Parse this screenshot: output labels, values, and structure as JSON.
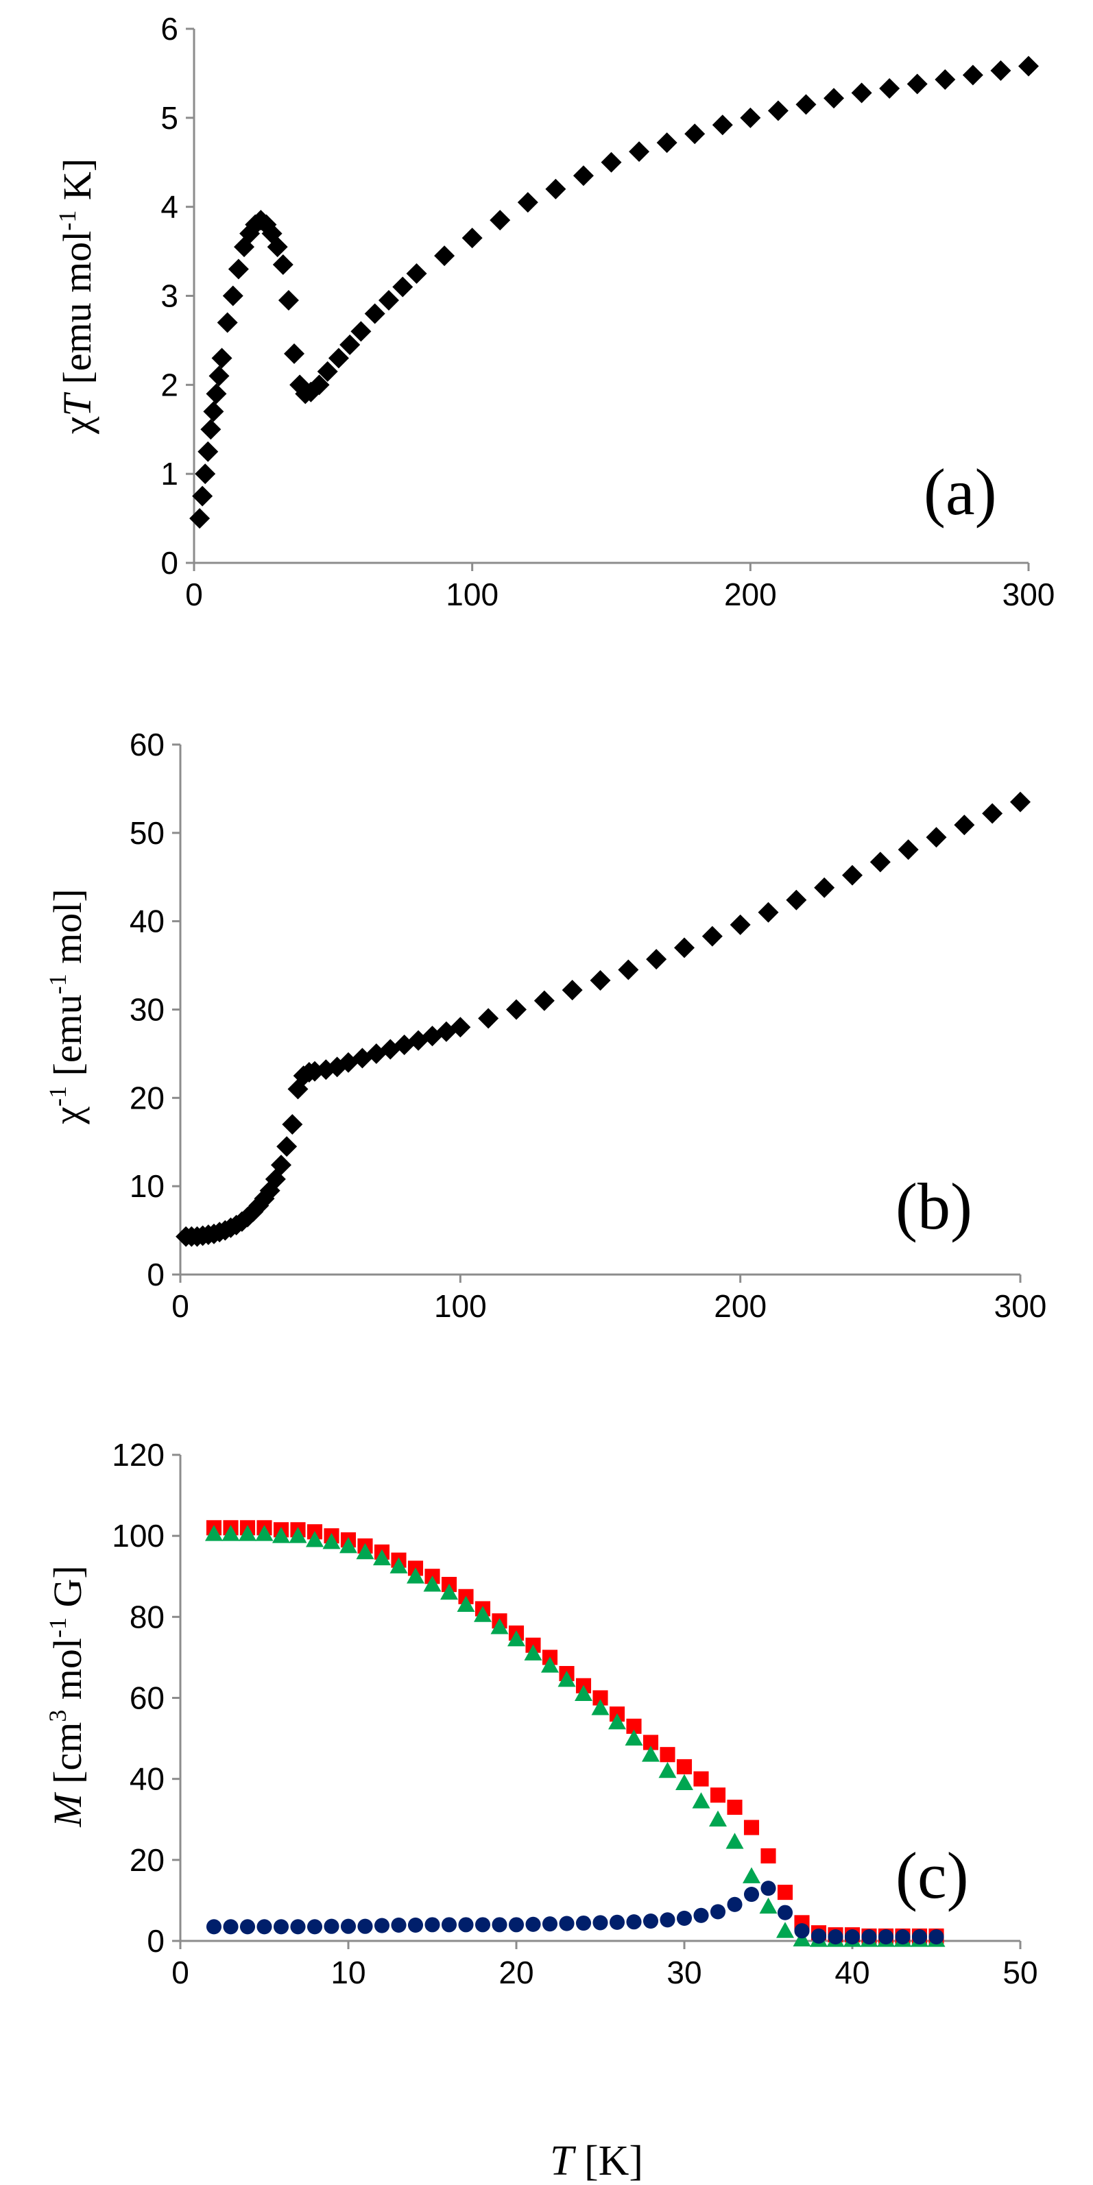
{
  "chart_data": [
    {
      "type": "scatter",
      "panel_label": "(a)",
      "ylabel": {
        "sym": "χT",
        "prefix": "χ",
        "italic": "T",
        "open": " [emu mol",
        "sup": "-1",
        "close": " K]"
      },
      "xlim": [
        0,
        300
      ],
      "ylim": [
        0,
        6
      ],
      "xticks": [
        "0",
        "100",
        "200",
        "300"
      ],
      "yticks": [
        "0",
        "1",
        "2",
        "3",
        "4",
        "5",
        "6"
      ],
      "series": [
        {
          "name": "χT",
          "marker": "diamond",
          "color": "#000000",
          "x": [
            2,
            3,
            4,
            5,
            6,
            7,
            8,
            9,
            10,
            12,
            14,
            16,
            18,
            20,
            22,
            24,
            26,
            28,
            30,
            32,
            34,
            36,
            38,
            40,
            42,
            45,
            48,
            52,
            56,
            60,
            65,
            70,
            75,
            80,
            90,
            100,
            110,
            120,
            130,
            140,
            150,
            160,
            170,
            180,
            190,
            200,
            210,
            220,
            230,
            240,
            250,
            260,
            270,
            280,
            290,
            300
          ],
          "y": [
            0.5,
            0.75,
            1.0,
            1.25,
            1.5,
            1.7,
            1.9,
            2.1,
            2.3,
            2.7,
            3.0,
            3.3,
            3.55,
            3.7,
            3.8,
            3.85,
            3.8,
            3.7,
            3.55,
            3.35,
            2.95,
            2.35,
            2.0,
            1.9,
            1.92,
            2.0,
            2.15,
            2.3,
            2.45,
            2.6,
            2.8,
            2.95,
            3.1,
            3.25,
            3.45,
            3.65,
            3.85,
            4.05,
            4.2,
            4.35,
            4.5,
            4.62,
            4.72,
            4.82,
            4.92,
            5.0,
            5.08,
            5.15,
            5.22,
            5.28,
            5.33,
            5.38,
            5.43,
            5.48,
            5.53,
            5.58
          ]
        }
      ]
    },
    {
      "type": "scatter",
      "panel_label": "(b)",
      "ylabel": {
        "sym": "χ-1",
        "prefix": "χ",
        "presup": "-1",
        "open": " [emu",
        "sup": "-1",
        "close": " mol]"
      },
      "xlim": [
        0,
        300
      ],
      "ylim": [
        0,
        60
      ],
      "xticks": [
        "0",
        "100",
        "200",
        "300"
      ],
      "yticks": [
        "0",
        "10",
        "20",
        "30",
        "40",
        "50",
        "60"
      ],
      "series": [
        {
          "name": "1/χ",
          "marker": "diamond",
          "color": "#000000",
          "x": [
            2,
            4,
            6,
            8,
            10,
            12,
            14,
            16,
            18,
            20,
            22,
            24,
            26,
            28,
            30,
            32,
            34,
            36,
            38,
            40,
            42,
            44,
            46,
            48,
            52,
            56,
            60,
            65,
            70,
            75,
            80,
            85,
            90,
            95,
            100,
            110,
            120,
            130,
            140,
            150,
            160,
            170,
            180,
            190,
            200,
            210,
            220,
            230,
            240,
            250,
            260,
            270,
            280,
            290,
            300
          ],
          "y": [
            4.3,
            4.3,
            4.3,
            4.4,
            4.5,
            4.6,
            4.8,
            5.0,
            5.3,
            5.6,
            6.0,
            6.5,
            7.1,
            7.8,
            8.6,
            9.5,
            10.8,
            12.4,
            14.5,
            17.0,
            21.0,
            22.5,
            22.9,
            23.0,
            23.2,
            23.5,
            24.0,
            24.5,
            25.0,
            25.5,
            26.0,
            26.5,
            27.0,
            27.5,
            28.0,
            29.0,
            30.0,
            31.0,
            32.2,
            33.3,
            34.5,
            35.7,
            37.0,
            38.3,
            39.6,
            41.0,
            42.4,
            43.8,
            45.2,
            46.7,
            48.1,
            49.5,
            50.9,
            52.2,
            53.5
          ]
        }
      ]
    },
    {
      "type": "scatter",
      "panel_label": "(c)",
      "ylabel": {
        "italic": "M",
        "open": " [cm",
        "sup": "3",
        "mid": " mol",
        "sup2": "-1",
        "close": " G]"
      },
      "xlabel": {
        "italic": "T",
        "rest": " [K]"
      },
      "xlim": [
        0,
        50
      ],
      "ylim": [
        0,
        120
      ],
      "xticks": [
        "0",
        "10",
        "20",
        "30",
        "40",
        "50"
      ],
      "yticks": [
        "0",
        "20",
        "40",
        "60",
        "80",
        "100",
        "120"
      ],
      "series": [
        {
          "name": "series-red-squares",
          "marker": "square",
          "color": "#ff0000",
          "x": [
            2,
            3,
            4,
            5,
            6,
            7,
            8,
            9,
            10,
            11,
            12,
            13,
            14,
            15,
            16,
            17,
            18,
            19,
            20,
            21,
            22,
            23,
            24,
            25,
            26,
            27,
            28,
            29,
            30,
            31,
            32,
            33,
            34,
            35,
            36,
            37,
            38,
            39,
            40,
            41,
            42,
            43,
            44,
            45
          ],
          "y": [
            102,
            102,
            102,
            102,
            101.5,
            101.5,
            101,
            100,
            99,
            97.5,
            96,
            94,
            92,
            90,
            88,
            85,
            82,
            79,
            76,
            73,
            70,
            66,
            63,
            60,
            56,
            53,
            49,
            46,
            43,
            40,
            36,
            33,
            28,
            21,
            12,
            4.5,
            2,
            1.5,
            1.5,
            1.2,
            1.2,
            1.2,
            1.2,
            1.2
          ]
        },
        {
          "name": "series-green-triangles",
          "marker": "triangle",
          "color": "#00a651",
          "x": [
            2,
            3,
            4,
            5,
            6,
            7,
            8,
            9,
            10,
            11,
            12,
            13,
            14,
            15,
            16,
            17,
            18,
            19,
            20,
            21,
            22,
            23,
            24,
            25,
            26,
            27,
            28,
            29,
            30,
            31,
            32,
            33,
            34,
            35,
            36,
            37,
            38,
            39,
            40,
            41,
            42,
            43,
            44,
            45
          ],
          "y": [
            100.5,
            100.5,
            100.5,
            100.5,
            100,
            100,
            99,
            98.5,
            97.5,
            96,
            94.5,
            92.5,
            90,
            88,
            86,
            83,
            80.5,
            77.5,
            74.5,
            71,
            68,
            64.5,
            61,
            57.5,
            54,
            50,
            46,
            42,
            39,
            34.5,
            30,
            24.5,
            16,
            8.5,
            2.5,
            0.4,
            0.3,
            0.3,
            0.3,
            0.3,
            0.3,
            0.3,
            0.3,
            0.3
          ]
        },
        {
          "name": "series-navy-circles",
          "marker": "circle",
          "color": "#001f6b",
          "x": [
            2,
            3,
            4,
            5,
            6,
            7,
            8,
            9,
            10,
            11,
            12,
            13,
            14,
            15,
            16,
            17,
            18,
            19,
            20,
            21,
            22,
            23,
            24,
            25,
            26,
            27,
            28,
            29,
            30,
            31,
            32,
            33,
            34,
            35,
            36,
            37,
            38,
            39,
            40,
            41,
            42,
            43,
            44,
            45
          ],
          "y": [
            3.5,
            3.5,
            3.5,
            3.5,
            3.5,
            3.5,
            3.5,
            3.6,
            3.6,
            3.6,
            3.8,
            3.9,
            3.9,
            4.0,
            4.0,
            4.0,
            4.0,
            4.0,
            4.0,
            4.1,
            4.2,
            4.3,
            4.4,
            4.5,
            4.6,
            4.7,
            4.9,
            5.2,
            5.6,
            6.3,
            7.2,
            9.0,
            11.5,
            13.0,
            7.0,
            2.5,
            1.2,
            1.0,
            1.0,
            1.0,
            1.0,
            1.0,
            1.0,
            1.0
          ]
        }
      ]
    }
  ]
}
